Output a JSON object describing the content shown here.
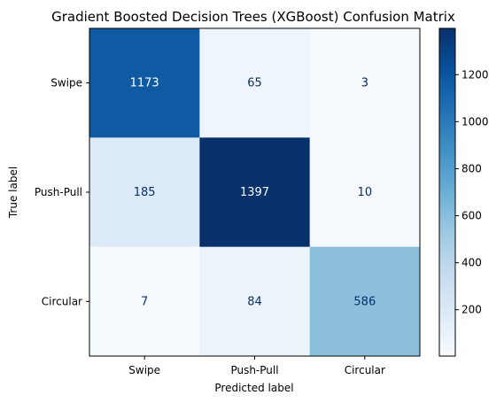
{
  "chart_data": {
    "type": "heatmap",
    "title": "Gradient Boosted Decision Trees (XGBoost) Confusion Matrix",
    "xlabel": "Predicted label",
    "ylabel": "True label",
    "x_categories": [
      "Swipe",
      "Push-Pull",
      "Circular"
    ],
    "y_categories": [
      "Swipe",
      "Push-Pull",
      "Circular"
    ],
    "values": [
      [
        1173,
        65,
        3
      ],
      [
        185,
        1397,
        10
      ],
      [
        7,
        84,
        586
      ]
    ],
    "colormap": "Blues",
    "colorbar": {
      "ticks": [
        200,
        400,
        600,
        800,
        1000,
        1200
      ],
      "range": [
        3,
        1397
      ]
    }
  }
}
